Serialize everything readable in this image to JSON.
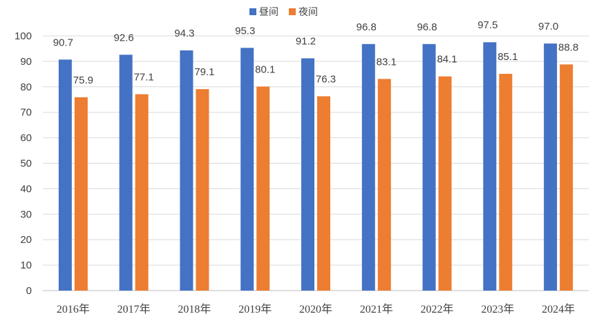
{
  "chart_data": {
    "type": "bar",
    "categories": [
      "2016年",
      "2017年",
      "2018年",
      "2019年",
      "2020年",
      "2021年",
      "2022年",
      "2023年",
      "2024年"
    ],
    "series": [
      {
        "name": "昼间",
        "color": "#4472c4",
        "values": [
          90.7,
          92.6,
          94.3,
          95.3,
          91.2,
          96.8,
          96.8,
          97.5,
          97.0
        ]
      },
      {
        "name": "夜间",
        "color": "#ed7d31",
        "values": [
          75.9,
          77.1,
          79.1,
          80.1,
          76.3,
          83.1,
          84.1,
          85.1,
          88.8
        ]
      }
    ],
    "value_labels": [
      [
        "90.7",
        "92.6",
        "94.3",
        "95.3",
        "91.2",
        "96.8",
        "96.8",
        "97.5",
        "97.0"
      ],
      [
        "75.9",
        "77.1",
        "79.1",
        "80.1",
        "76.3",
        "83.1",
        "84.1",
        "85.1",
        "88.8"
      ]
    ],
    "y_ticks": [
      "0",
      "10",
      "20",
      "30",
      "40",
      "50",
      "60",
      "70",
      "80",
      "90",
      "100"
    ],
    "ylim": [
      0,
      100
    ],
    "grid": true,
    "legend_position": "top-center",
    "title": "",
    "xlabel": "",
    "ylabel": ""
  }
}
